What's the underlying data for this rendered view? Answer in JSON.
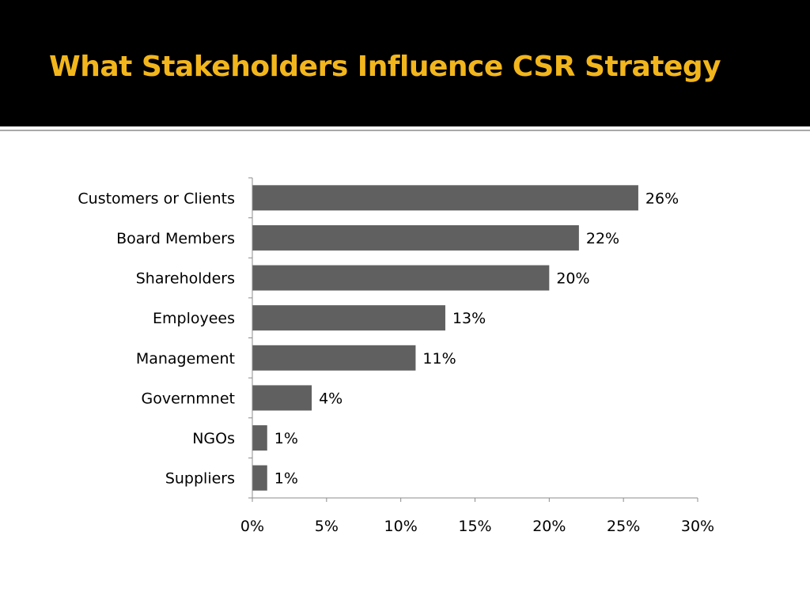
{
  "slide": {
    "title": "What Stakeholders Influence CSR Strategy"
  },
  "colors": {
    "title_bar": "#000000",
    "title_text": "#f2b61c",
    "bar_fill": "#606060",
    "axis": "#8c8c8c",
    "rule": "#a9a9a9"
  },
  "chart_data": {
    "type": "bar",
    "orientation": "horizontal",
    "categories": [
      "Customers or Clients",
      "Board Members",
      "Shareholders",
      "Employees",
      "Management",
      "Governmnet",
      "NGOs",
      "Suppliers"
    ],
    "values": [
      26,
      22,
      20,
      13,
      11,
      4,
      1,
      1
    ],
    "value_labels": [
      "26%",
      "22%",
      "20%",
      "13%",
      "11%",
      "4%",
      "1%",
      "1%"
    ],
    "xlim": [
      0,
      30
    ],
    "xticks": [
      0,
      5,
      10,
      15,
      20,
      25,
      30
    ],
    "xtick_labels": [
      "0%",
      "5%",
      "10%",
      "15%",
      "20%",
      "25%",
      "30%"
    ],
    "grid": false,
    "legend": "none",
    "title": "",
    "xlabel": "",
    "ylabel": ""
  }
}
